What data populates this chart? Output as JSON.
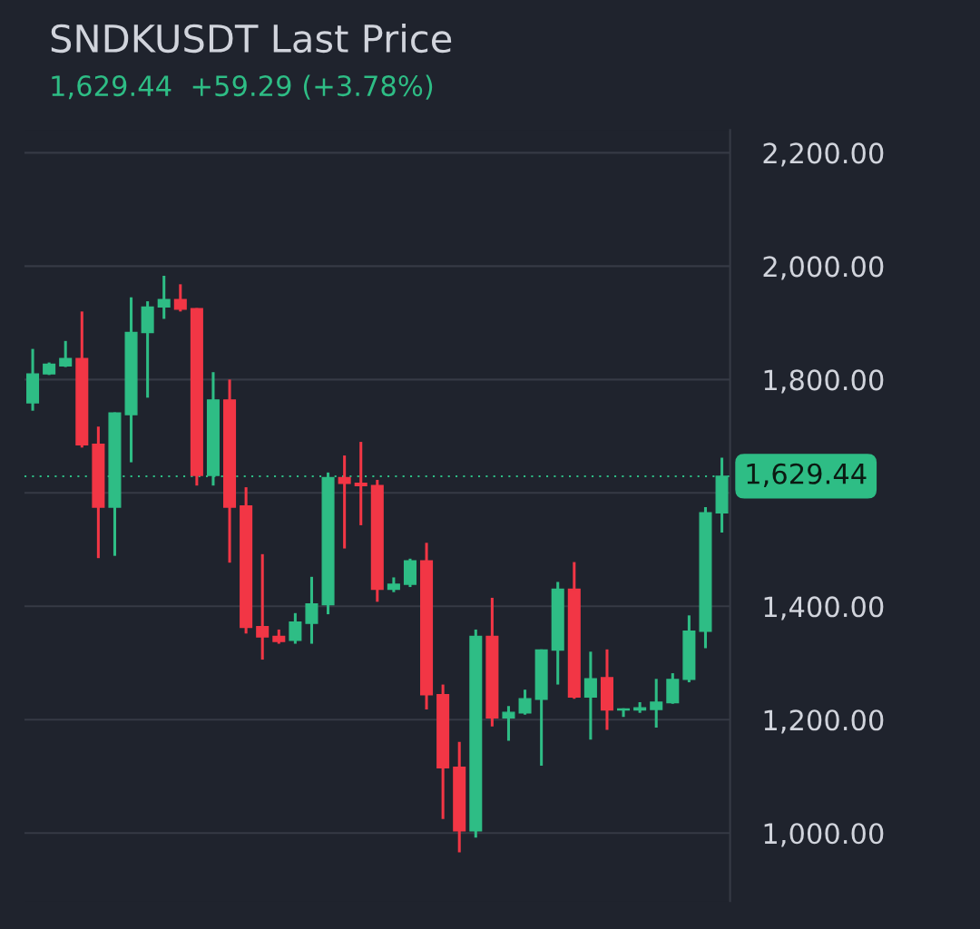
{
  "chart_data": {
    "type": "candlestick",
    "title": "SNDKUSDT Last Price",
    "subtitle": "1,629.44  +59.29 (+3.78%)",
    "categories": [
      null,
      null,
      null,
      null,
      null,
      null,
      null,
      null,
      null,
      null,
      null,
      null,
      null,
      null,
      null,
      null,
      null,
      null,
      null,
      null,
      null,
      null,
      null,
      null,
      null,
      null,
      null,
      null,
      null,
      null,
      null,
      null,
      null,
      null,
      null,
      null,
      null,
      null,
      null,
      null,
      null,
      null,
      null
    ],
    "ohlc": [
      [
        1759,
        1854,
        1745,
        1810
      ],
      [
        1810,
        1830,
        1808,
        1827
      ],
      [
        1824,
        1868,
        1822,
        1837
      ],
      [
        1837,
        1920,
        1680,
        1685
      ],
      [
        1686,
        1717,
        1485,
        1575
      ],
      [
        1575,
        1742,
        1489,
        1741
      ],
      [
        1738,
        1945,
        1654,
        1883
      ],
      [
        1883,
        1938,
        1768,
        1928
      ],
      [
        1928,
        1983,
        1907,
        1941
      ],
      [
        1941,
        1968,
        1920,
        1924
      ],
      [
        1925,
        1926,
        1613,
        1631
      ],
      [
        1631,
        1813,
        1613,
        1764
      ],
      [
        1764,
        1800,
        1477,
        1575
      ],
      [
        1577,
        1610,
        1352,
        1363
      ],
      [
        1364,
        1492,
        1306,
        1346
      ],
      [
        1347,
        1359,
        1334,
        1338
      ],
      [
        1340,
        1388,
        1334,
        1372
      ],
      [
        1370,
        1452,
        1334,
        1404
      ],
      [
        1403,
        1636,
        1386,
        1627
      ],
      [
        1627,
        1666,
        1502,
        1617
      ],
      [
        1617,
        1690,
        1543,
        1613
      ],
      [
        1613,
        1623,
        1408,
        1430
      ],
      [
        1430,
        1451,
        1425,
        1439
      ],
      [
        1439,
        1484,
        1434,
        1480
      ],
      [
        1480,
        1512,
        1218,
        1244
      ],
      [
        1244,
        1262,
        1025,
        1115
      ],
      [
        1116,
        1161,
        966,
        1004
      ],
      [
        1004,
        1359,
        992,
        1347
      ],
      [
        1347,
        1415,
        1188,
        1203
      ],
      [
        1203,
        1224,
        1163,
        1213
      ],
      [
        1212,
        1253,
        1209,
        1237
      ],
      [
        1236,
        1324,
        1119,
        1323
      ],
      [
        1323,
        1443,
        1262,
        1430
      ],
      [
        1430,
        1478,
        1237,
        1240
      ],
      [
        1240,
        1320,
        1165,
        1272
      ],
      [
        1274,
        1324,
        1182,
        1217
      ],
      [
        1217,
        1220,
        1205,
        1219
      ],
      [
        1217,
        1231,
        1212,
        1221
      ],
      [
        1218,
        1272,
        1186,
        1231
      ],
      [
        1230,
        1282,
        1228,
        1271
      ],
      [
        1271,
        1384,
        1266,
        1356
      ],
      [
        1356,
        1575,
        1326,
        1565
      ],
      [
        1565,
        1662,
        1530,
        1629.44
      ]
    ],
    "colors": [
      "#2ebd85",
      "#2ebd85",
      "#2ebd85",
      "#f23645",
      "#f23645",
      "#2ebd85",
      "#2ebd85",
      "#2ebd85",
      "#2ebd85",
      "#f23645",
      "#f23645",
      "#2ebd85",
      "#f23645",
      "#f23645",
      "#f23645",
      "#f23645",
      "#2ebd85",
      "#2ebd85",
      "#2ebd85",
      "#f23645",
      "#f23645",
      "#f23645",
      "#2ebd85",
      "#2ebd85",
      "#f23645",
      "#f23645",
      "#f23645",
      "#2ebd85",
      "#f23645",
      "#2ebd85",
      "#2ebd85",
      "#2ebd85",
      "#2ebd85",
      "#f23645",
      "#2ebd85",
      "#f23645",
      "#2ebd85",
      "#2ebd85",
      "#2ebd85",
      "#2ebd85",
      "#2ebd85",
      "#2ebd85",
      "#2ebd85"
    ],
    "ylim": [
      880,
      2240
    ],
    "yticks": [
      {
        "value": 1000,
        "label": "1,000.00"
      },
      {
        "value": 1200,
        "label": "1,200.00"
      },
      {
        "value": 1400,
        "label": "1,400.00"
      },
      {
        "value": 1600,
        "label": null
      },
      {
        "value": 1800,
        "label": "1,800.00"
      },
      {
        "value": 2000,
        "label": "2,000.00"
      },
      {
        "value": 2200,
        "label": "2,200.00"
      }
    ],
    "grid": "y",
    "ref_lines": [
      {
        "axis": "y",
        "value": 1629.44,
        "label": "1,629.44",
        "color": "#2ebd85",
        "line_style": "dotted"
      }
    ]
  }
}
